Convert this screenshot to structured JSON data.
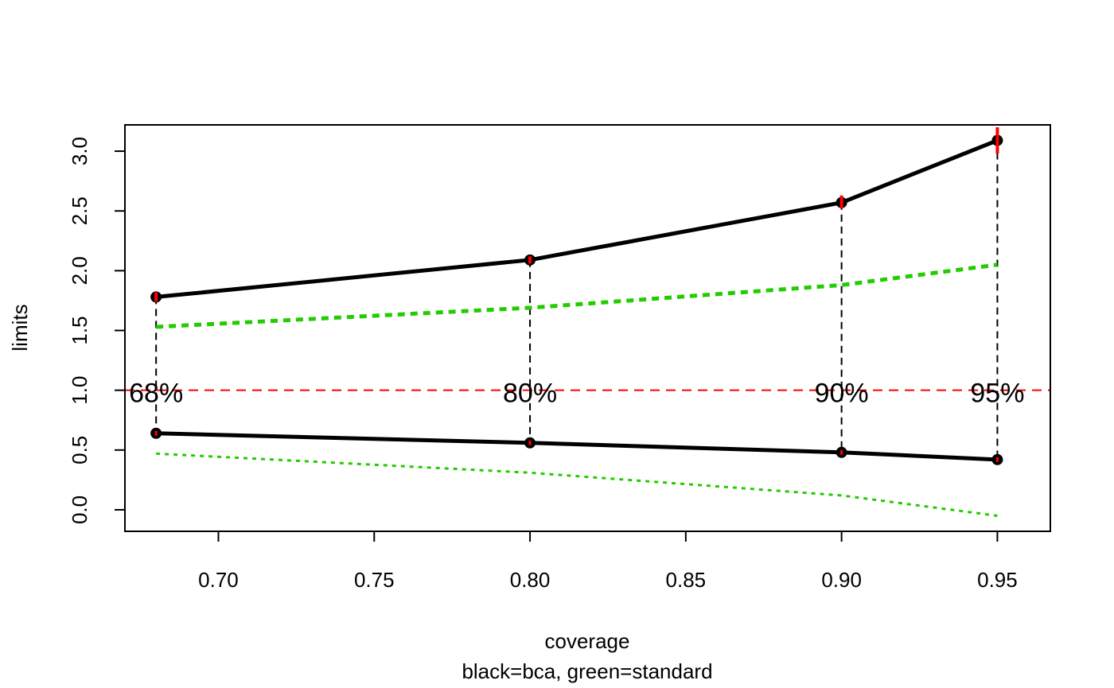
{
  "chart_data": {
    "type": "line",
    "xlabel": "coverage",
    "subtitle": "black=bca, green=standard",
    "ylabel": "limits",
    "xlim": [
      0.67,
      0.967
    ],
    "ylim": [
      -0.18,
      3.22
    ],
    "x_ticks": [
      "0.70",
      "0.75",
      "0.80",
      "0.85",
      "0.90",
      "0.95"
    ],
    "y_ticks": [
      "0.0",
      "0.5",
      "1.0",
      "1.5",
      "2.0",
      "2.5",
      "3.0"
    ],
    "reference_line_y": 1.0,
    "reference_color": "#ff0000",
    "coverage_labels": [
      {
        "x": 0.68,
        "label": "68%"
      },
      {
        "x": 0.8,
        "label": "80%"
      },
      {
        "x": 0.9,
        "label": "90%"
      },
      {
        "x": 0.95,
        "label": "95%"
      }
    ],
    "x": [
      0.68,
      0.8,
      0.9,
      0.95
    ],
    "series": [
      {
        "key": "bca_upper",
        "color": "#000000",
        "values": [
          1.78,
          2.09,
          2.57,
          3.09
        ]
      },
      {
        "key": "bca_lower",
        "color": "#000000",
        "values": [
          0.64,
          0.56,
          0.48,
          0.42
        ]
      },
      {
        "key": "standard_upper",
        "color": "#22cc00",
        "values": [
          1.53,
          1.69,
          1.88,
          2.05
        ]
      },
      {
        "key": "standard_lower",
        "color": "#22cc00",
        "values": [
          0.47,
          0.31,
          0.12,
          -0.05
        ]
      }
    ],
    "error_bars_color": "#ff0000",
    "upper_error_ranges": [
      [
        1.74,
        1.82
      ],
      [
        2.06,
        2.12
      ],
      [
        2.52,
        2.63
      ],
      [
        2.98,
        3.2
      ]
    ],
    "grid": false
  }
}
